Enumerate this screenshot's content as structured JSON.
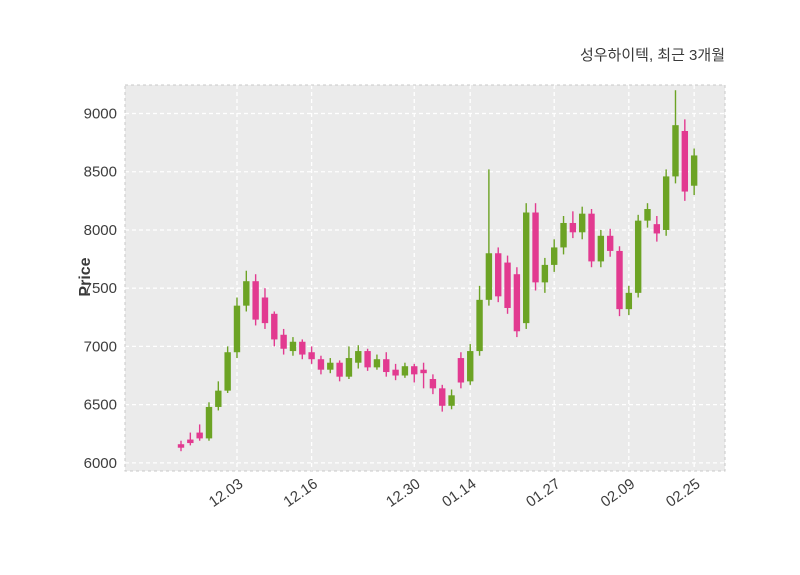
{
  "chart_data": {
    "type": "candlestick",
    "title": "성우하이텍, 최근 3개월",
    "ylabel": "Price",
    "ylim": [
      5930,
      9245
    ],
    "y_ticks": [
      6000,
      6500,
      7000,
      7500,
      8000,
      8500,
      9000
    ],
    "x_ticks": [
      {
        "label": "12.03",
        "index": 6
      },
      {
        "label": "12.16",
        "index": 14
      },
      {
        "label": "12.30",
        "index": 25
      },
      {
        "label": "01.14",
        "index": 31
      },
      {
        "label": "01.27",
        "index": 40
      },
      {
        "label": "02.09",
        "index": 48
      },
      {
        "label": "02.25",
        "index": 55
      }
    ],
    "candle_format": "ohlc",
    "candles": [
      [
        6160,
        6190,
        6100,
        6130
      ],
      [
        6200,
        6260,
        6150,
        6170
      ],
      [
        6260,
        6330,
        6190,
        6210
      ],
      [
        6210,
        6520,
        6190,
        6480
      ],
      [
        6480,
        6700,
        6450,
        6620
      ],
      [
        6620,
        7000,
        6600,
        6950
      ],
      [
        6950,
        7420,
        6900,
        7350
      ],
      [
        7350,
        7650,
        7300,
        7560
      ],
      [
        7560,
        7620,
        7180,
        7230
      ],
      [
        7420,
        7500,
        7150,
        7200
      ],
      [
        7280,
        7300,
        7000,
        7060
      ],
      [
        7100,
        7150,
        6930,
        6980
      ],
      [
        6960,
        7080,
        6920,
        7040
      ],
      [
        7040,
        7060,
        6890,
        6930
      ],
      [
        6950,
        7000,
        6850,
        6890
      ],
      [
        6890,
        6920,
        6760,
        6800
      ],
      [
        6800,
        6900,
        6770,
        6860
      ],
      [
        6860,
        6880,
        6700,
        6740
      ],
      [
        6740,
        7000,
        6720,
        6900
      ],
      [
        6860,
        7010,
        6810,
        6960
      ],
      [
        6960,
        6980,
        6790,
        6820
      ],
      [
        6820,
        6930,
        6800,
        6890
      ],
      [
        6890,
        6950,
        6740,
        6780
      ],
      [
        6800,
        6850,
        6710,
        6750
      ],
      [
        6750,
        6860,
        6730,
        6830
      ],
      [
        6830,
        6850,
        6690,
        6760
      ],
      [
        6800,
        6860,
        6640,
        6770
      ],
      [
        6720,
        6760,
        6590,
        6640
      ],
      [
        6640,
        6670,
        6440,
        6490
      ],
      [
        6490,
        6630,
        6460,
        6580
      ],
      [
        6900,
        6950,
        6640,
        6690
      ],
      [
        6700,
        7020,
        6670,
        6960
      ],
      [
        6960,
        7520,
        6920,
        7400
      ],
      [
        7400,
        8520,
        7350,
        7800
      ],
      [
        7800,
        7850,
        7380,
        7430
      ],
      [
        7720,
        7780,
        7280,
        7330
      ],
      [
        7620,
        7680,
        7080,
        7130
      ],
      [
        7200,
        8230,
        7150,
        8150
      ],
      [
        8150,
        8230,
        7480,
        7550
      ],
      [
        7550,
        7760,
        7460,
        7700
      ],
      [
        7700,
        7920,
        7640,
        7850
      ],
      [
        7850,
        8120,
        7790,
        8060
      ],
      [
        8060,
        8160,
        7930,
        7980
      ],
      [
        7980,
        8200,
        7920,
        8140
      ],
      [
        8140,
        8180,
        7680,
        7730
      ],
      [
        7730,
        8000,
        7680,
        7950
      ],
      [
        7950,
        8010,
        7770,
        7820
      ],
      [
        7820,
        7860,
        7260,
        7320
      ],
      [
        7320,
        7520,
        7270,
        7460
      ],
      [
        7460,
        8130,
        7420,
        8080
      ],
      [
        8080,
        8230,
        8020,
        8180
      ],
      [
        8050,
        8120,
        7900,
        7970
      ],
      [
        8000,
        8520,
        7950,
        8460
      ],
      [
        8460,
        9200,
        8400,
        8900
      ],
      [
        8850,
        8950,
        8250,
        8330
      ],
      [
        8380,
        8700,
        8300,
        8640
      ]
    ],
    "colors": {
      "up": "#6ca324",
      "down": "#e23a90",
      "plot_bg": "#ebebeb",
      "grid": "#ffffff",
      "border": "#c9c9c9",
      "text": "#3d3d3d"
    },
    "grid": "on",
    "legend": "none"
  }
}
